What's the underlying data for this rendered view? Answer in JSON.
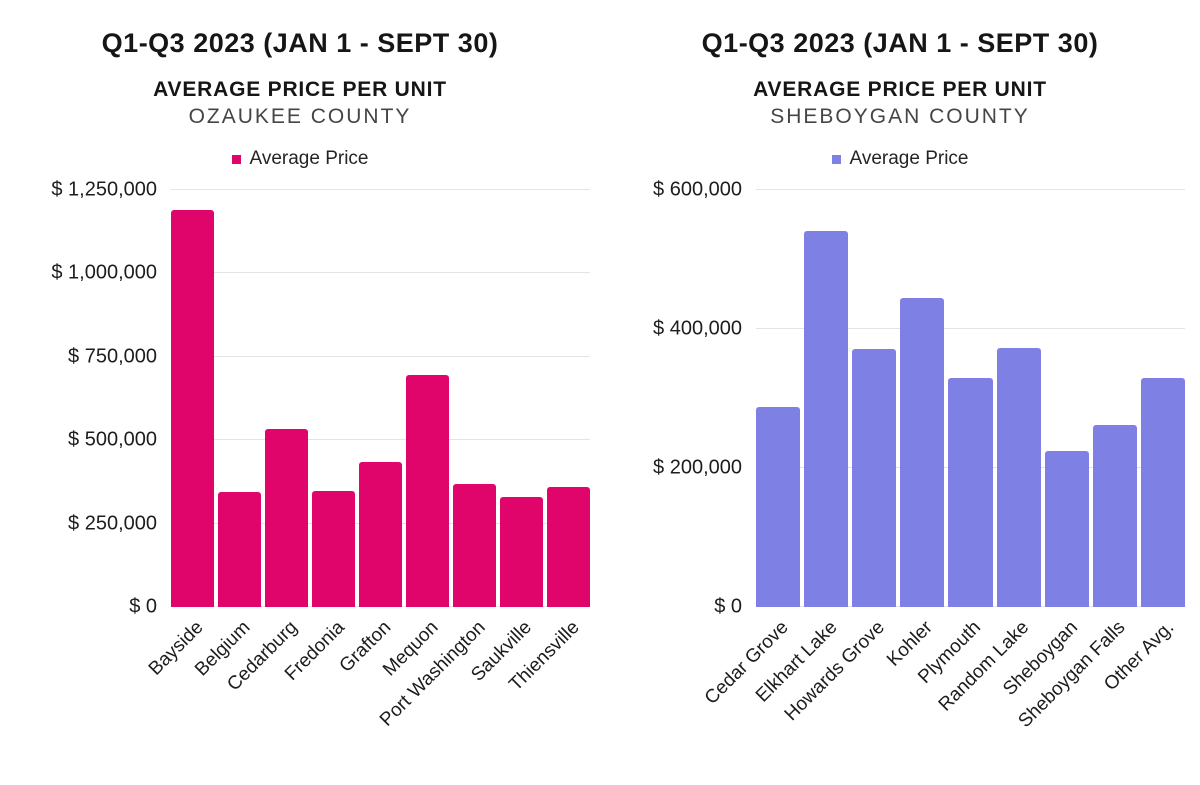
{
  "page": {
    "background": "#FFFFFF"
  },
  "chart_data": [
    {
      "type": "bar",
      "title": "Q1-Q3 2023 (JAN 1 - SEPT 30)",
      "subtitle": "AVERAGE PRICE PER UNIT",
      "county": "OZAUKEE COUNTY",
      "legend_label": "Average Price",
      "bar_color": "#E0056B",
      "gridline_color": "#E4E4E4",
      "grid": true,
      "legend_position": "top",
      "xlabel": "",
      "ylabel": "",
      "categories": [
        "Bayside",
        "Belgium",
        "Cedarburg",
        "Fredonia",
        "Grafton",
        "Mequon",
        "Port Washington",
        "Saukville",
        "Thiensville"
      ],
      "values": [
        1190000,
        346000,
        535000,
        347000,
        435000,
        695000,
        368000,
        331000,
        359000
      ],
      "ylim": [
        0,
        1250000
      ],
      "y_ticks": [
        0,
        250000,
        500000,
        750000,
        1000000,
        1250000
      ],
      "y_tick_labels": [
        "$ 0",
        "$ 250,000",
        "$ 500,000",
        "$ 750,000",
        "$ 1,000,000",
        "$ 1,250,000"
      ]
    },
    {
      "type": "bar",
      "title": "Q1-Q3 2023 (JAN 1 - SEPT 30)",
      "subtitle": "AVERAGE PRICE PER UNIT",
      "county": "SHEBOYGAN COUNTY",
      "legend_label": "Average Price",
      "bar_color": "#7E81E3",
      "gridline_color": "#E4E4E4",
      "grid": true,
      "legend_position": "top",
      "xlabel": "",
      "ylabel": "",
      "categories": [
        "Cedar Grove",
        "Elkhart Lake",
        "Howards Grove",
        "Kohler",
        "Plymouth",
        "Random Lake",
        "Sheboygan",
        "Sheboygan Falls",
        "Other Avg."
      ],
      "values": [
        288000,
        541000,
        371000,
        445000,
        329000,
        373000,
        224000,
        262000,
        329000
      ],
      "ylim": [
        0,
        600000
      ],
      "y_ticks": [
        0,
        200000,
        400000,
        600000
      ],
      "y_tick_labels": [
        "$ 0",
        "$ 200,000",
        "$ 400,000",
        "$ 600,000"
      ]
    }
  ]
}
